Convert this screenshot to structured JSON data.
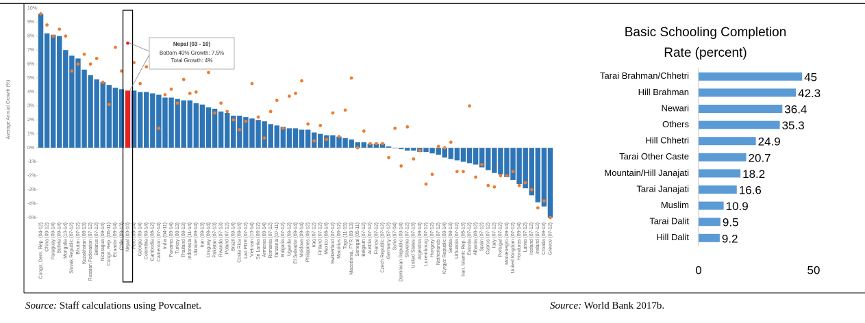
{
  "chart_data": [
    {
      "type": "bar",
      "y_label": "Average Annual Growth (%)",
      "ylim": [
        -5,
        10
      ],
      "yticks": [
        {
          "value": -5,
          "label": "-5%"
        },
        {
          "value": -4,
          "label": "-4%"
        },
        {
          "value": -3,
          "label": "-3%"
        },
        {
          "value": -2,
          "label": "-2%"
        },
        {
          "value": -1,
          "label": "-1%"
        },
        {
          "value": 0,
          "label": "0%"
        },
        {
          "value": 1,
          "label": "1%"
        },
        {
          "value": 2,
          "label": "2%"
        },
        {
          "value": 3,
          "label": "3%"
        },
        {
          "value": 4,
          "label": "4%"
        },
        {
          "value": 5,
          "label": "5%"
        },
        {
          "value": 6,
          "label": "6%"
        },
        {
          "value": 7,
          "label": "7%"
        },
        {
          "value": 8,
          "label": "8%"
        },
        {
          "value": 9,
          "label": "9%"
        },
        {
          "value": 10,
          "label": "10%"
        }
      ],
      "categories": [
        "Congo, Dem. Rep. (04-12)",
        "China (09-12)",
        "Paraguay (09-14)",
        "Bolivia (09-14)",
        "Mongolia (10-14)",
        "Slovak Republic (07-12)",
        "Bhutan (07-12)",
        "Kazakhstan (08-13)",
        "Russian Federation (07-12)",
        "Belarus (07-12)",
        "Nicaragua (09-14)",
        "Congo, Rep. (05-11)",
        "Ecuador (09-14)",
        "Chile (09-13)",
        "Nepal (03-10)",
        "Peru (09-14)",
        "Georgia (09-14)",
        "Colombia (09-14)",
        "Cambodia (08-12)",
        "Cameroon (07-14)",
        "India (04-11)",
        "Panama (09-14)",
        "Turkey (08-13)",
        "Thailand (08-13)",
        "Indonesia (11-14)",
        "Ukraine (09-14)",
        "Iran (09-13)",
        "Uruguay (09-14)",
        "Pakistan (07-13)",
        "Rwanda (07-13)",
        "Poland (07-12)",
        "Brazil (09-14)",
        "Costa Rica (09-14)",
        "Lao PDR (07-12)",
        "Vietnam (10-14)",
        "Sri Lanka (06-12)",
        "Armenia (09-14)",
        "Romania (07-12)",
        "Tanzania (07-11)",
        "Bulgaria (07-12)",
        "Uganda (09-12)",
        "El Salvador (09-14)",
        "Moldova (09-14)",
        "Philippines (06-12)",
        "Iraq (07-12)",
        "Finland (07-12)",
        "Mexico (08-14)",
        "Switzerland (07-12)",
        "Mauritius (06-12)",
        "Togo (11-15)",
        "Macedonia, FYR (09-13)",
        "Senegal (05-11)",
        "Belgium (07-12)",
        "Austria (07-12)",
        "France (07-12)",
        "Czech Republic (07-12)",
        "Germany (07-12)",
        "Syria (97-04)",
        "Dominican Republic (09-14)",
        "Slovenia (07-12)",
        "United States (07-13)",
        "Argentina (09-14)",
        "Luxembourg (07-12)",
        "Hungary (07-12)",
        "Netherlands (07-12)",
        "Kyrgyz Republic (09-14)",
        "Serbia (08-13)",
        "Lithuania (07-12)",
        "Iran, Islamic Rep. (05-13)",
        "Estonia (07-12)",
        "Albania (08-12)",
        "Spain (07-12)",
        "Cyprus (07-12)",
        "Italy (07-12)",
        "Portugal (07-12)",
        "Montenegro (09-14)",
        "United Kingdom (07-12)",
        "Honduras (09-14)",
        "Latvia (07-12)",
        "Iceland (07-12)",
        "Ireland (07-12)",
        "Croatia (09-13)",
        "Greece (07-12)"
      ],
      "highlight": "Nepal (03-10)",
      "highlight_color": "#e3241f",
      "series": [
        {
          "type": "bar",
          "color": "#2e75b6",
          "values": [
            9.6,
            8.2,
            8.1,
            8.0,
            7.0,
            6.6,
            6.4,
            5.6,
            5.2,
            4.9,
            4.7,
            4.5,
            4.3,
            4.2,
            4.1,
            4.1,
            4.0,
            4.0,
            3.9,
            3.8,
            3.6,
            3.6,
            3.5,
            3.4,
            3.4,
            3.2,
            3.1,
            2.9,
            2.8,
            2.6,
            2.5,
            2.3,
            2.3,
            2.2,
            2.1,
            2.0,
            1.9,
            1.7,
            1.6,
            1.5,
            1.4,
            1.4,
            1.3,
            1.3,
            1.1,
            1.0,
            0.9,
            0.9,
            0.8,
            0.7,
            0.6,
            0.4,
            0.4,
            0.3,
            0.3,
            0.3,
            0.1,
            0.0,
            -0.1,
            -0.2,
            -0.2,
            -0.3,
            -0.3,
            -0.4,
            -0.5,
            -0.7,
            -0.8,
            -0.9,
            -1.0,
            -1.1,
            -1.2,
            -1.4,
            -1.6,
            -1.8,
            -1.9,
            -2.1,
            -2.3,
            -2.6,
            -2.9,
            -3.4,
            -3.9,
            -4.2,
            -5.0
          ]
        },
        {
          "type": "scatter",
          "color": "#ed7d31",
          "values": [
            9.6,
            8.8,
            8.0,
            8.5,
            8.0,
            5.5,
            6.0,
            6.7,
            6.0,
            6.4,
            4.7,
            3.1,
            7.2,
            5.5,
            7.5,
            6.1,
            4.6,
            5.8,
            6.5,
            1.4,
            3.8,
            4.2,
            3.2,
            4.9,
            3.9,
            4.0,
            6.0,
            5.4,
            2.5,
            3.2,
            2.6,
            2.0,
            1.3,
            1.9,
            4.6,
            2.2,
            0.7,
            2.6,
            3.4,
            1.4,
            3.7,
            3.9,
            4.8,
            1.7,
            0.5,
            1.6,
            0.6,
            2.5,
            0.8,
            2.7,
            5.0,
            0.0,
            1.2,
            0.3,
            0.3,
            0.3,
            -0.7,
            1.4,
            -1.3,
            1.5,
            -0.8,
            -0.2,
            -2.6,
            -1.9,
            0.1,
            0.0,
            0.4,
            -1.7,
            -1.7,
            3.0,
            -2.1,
            -1.2,
            -2.7,
            -2.8,
            -2.0,
            -2.0,
            -1.7,
            -2.7,
            -2.5,
            -3.0,
            -4.3,
            -3.8,
            -5.0
          ]
        }
      ],
      "annotation": {
        "title": "Nepal (03 - 10)",
        "lines": [
          "Bottom 40% Growth: 7.5%",
          "Total Growth: 4%"
        ]
      },
      "source": {
        "label": "Source:",
        "text": "Staff calculations using Povcalnet."
      }
    },
    {
      "type": "hbar",
      "title": "Basic Schooling Completion Rate (percent)",
      "categories": [
        "Tarai Brahman/Chhetri",
        "Hill Brahman",
        "Newari",
        "Others",
        "Hill Chhetri",
        "Tarai Other Caste",
        "Mountain/Hill Janajati",
        "Tarai Janajati",
        "Muslim",
        "Tarai Dalit",
        "Hill Dalit"
      ],
      "values": [
        45,
        42.3,
        36.4,
        35.3,
        24.9,
        20.7,
        18.2,
        16.6,
        10.9,
        9.5,
        9.2
      ],
      "color": "#5b9bd5",
      "xlim": [
        0,
        60
      ],
      "xticks": [
        0,
        50
      ],
      "source": {
        "label": "Source:",
        "text": "World Bank 2017b."
      }
    }
  ]
}
